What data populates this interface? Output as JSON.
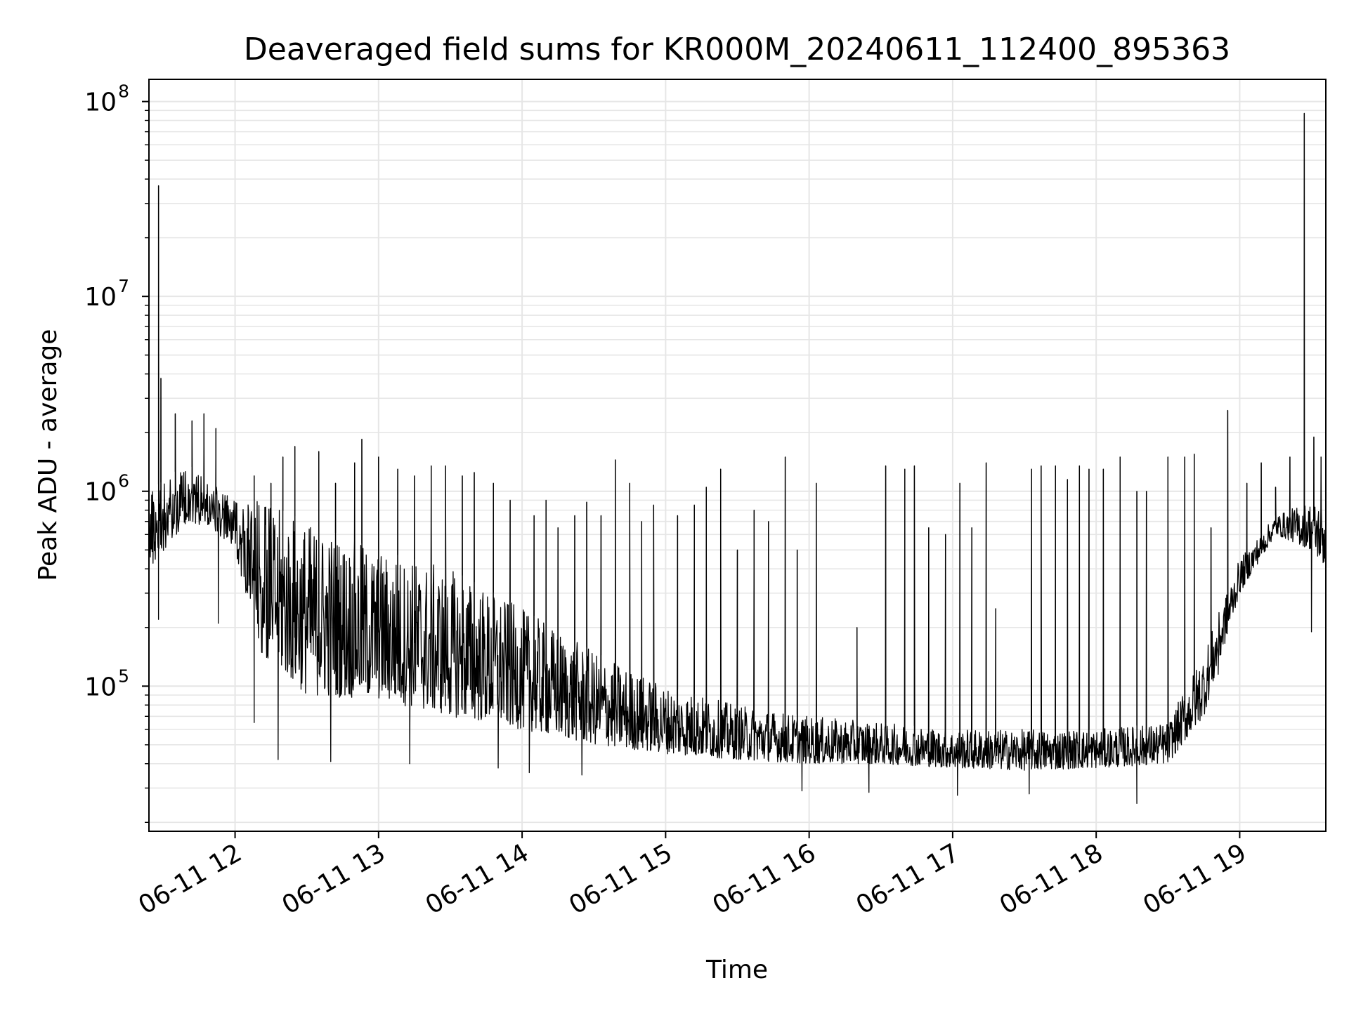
{
  "chart_data": {
    "type": "line",
    "title": "Deaveraged field sums for KR000M_20240611_112400_895363",
    "xlabel": "Time",
    "ylabel": "Peak ADU - average",
    "yscale": "log",
    "grid": true,
    "legend": "none",
    "colors": {
      "line": "#000000",
      "grid": "#e6e6e6",
      "background": "#ffffff"
    },
    "xlim": [
      "2024-06-11 11:24",
      "2024-06-11 19:36"
    ],
    "ylim": [
      18000,
      130000000
    ],
    "x_ticks": [
      {
        "value": "2024-06-11 12:00",
        "label": "06-11 12"
      },
      {
        "value": "2024-06-11 13:00",
        "label": "06-11 13"
      },
      {
        "value": "2024-06-11 14:00",
        "label": "06-11 14"
      },
      {
        "value": "2024-06-11 15:00",
        "label": "06-11 15"
      },
      {
        "value": "2024-06-11 16:00",
        "label": "06-11 16"
      },
      {
        "value": "2024-06-11 17:00",
        "label": "06-11 17"
      },
      {
        "value": "2024-06-11 18:00",
        "label": "06-11 18"
      },
      {
        "value": "2024-06-11 19:00",
        "label": "06-11 19"
      }
    ],
    "y_ticks": [
      {
        "value": 100000,
        "base": "10",
        "exp": "5"
      },
      {
        "value": 1000000,
        "base": "10",
        "exp": "6"
      },
      {
        "value": 10000000,
        "base": "10",
        "exp": "7"
      },
      {
        "value": 100000000,
        "base": "10",
        "exp": "8"
      }
    ],
    "series": [
      {
        "envelope": {
          "x": [
            "2024-06-11 11:24",
            "2024-06-11 11:40",
            "2024-06-11 11:50",
            "2024-06-11 12:00",
            "2024-06-11 12:10",
            "2024-06-11 12:30",
            "2024-06-11 13:00",
            "2024-06-11 13:30",
            "2024-06-11 14:00",
            "2024-06-11 14:30",
            "2024-06-11 15:00",
            "2024-06-11 15:30",
            "2024-06-11 16:00",
            "2024-06-11 16:30",
            "2024-06-11 17:00",
            "2024-06-11 17:30",
            "2024-06-11 18:00",
            "2024-06-11 18:30",
            "2024-06-11 18:45",
            "2024-06-11 19:00",
            "2024-06-11 19:15",
            "2024-06-11 19:30",
            "2024-06-11 19:36"
          ],
          "low": [
            400000,
            700000,
            650000,
            500000,
            150000,
            90000,
            85000,
            70000,
            60000,
            50000,
            45000,
            42000,
            40000,
            40000,
            38000,
            37000,
            38000,
            40000,
            70000,
            300000,
            600000,
            500000,
            400000
          ],
          "high": [
            1000000,
            1400000,
            1100000,
            900000,
            900000,
            700000,
            500000,
            400000,
            250000,
            150000,
            100000,
            80000,
            70000,
            65000,
            60000,
            60000,
            60000,
            65000,
            150000,
            450000,
            750000,
            900000,
            900000
          ]
        },
        "spikes": [
          [
            "2024-06-11 11:28",
            37000000
          ],
          [
            "2024-06-11 11:29",
            3800000
          ],
          [
            "2024-06-11 11:35",
            2500000
          ],
          [
            "2024-06-11 11:42",
            2300000
          ],
          [
            "2024-06-11 11:47",
            2500000
          ],
          [
            "2024-06-11 11:52",
            2100000
          ],
          [
            "2024-06-11 12:08",
            1200000
          ],
          [
            "2024-06-11 12:15",
            1100000
          ],
          [
            "2024-06-11 12:20",
            1500000
          ],
          [
            "2024-06-11 12:25",
            1700000
          ],
          [
            "2024-06-11 12:35",
            1600000
          ],
          [
            "2024-06-11 12:42",
            1100000
          ],
          [
            "2024-06-11 12:50",
            1400000
          ],
          [
            "2024-06-11 12:53",
            1850000
          ],
          [
            "2024-06-11 13:00",
            1500000
          ],
          [
            "2024-06-11 13:08",
            1300000
          ],
          [
            "2024-06-11 13:15",
            1200000
          ],
          [
            "2024-06-11 13:22",
            1350000
          ],
          [
            "2024-06-11 13:28",
            1350000
          ],
          [
            "2024-06-11 13:35",
            1200000
          ],
          [
            "2024-06-11 13:40",
            1250000
          ],
          [
            "2024-06-11 13:48",
            1100000
          ],
          [
            "2024-06-11 13:55",
            900000
          ],
          [
            "2024-06-11 14:05",
            750000
          ],
          [
            "2024-06-11 14:10",
            900000
          ],
          [
            "2024-06-11 14:15",
            650000
          ],
          [
            "2024-06-11 14:22",
            750000
          ],
          [
            "2024-06-11 14:27",
            880000
          ],
          [
            "2024-06-11 14:33",
            750000
          ],
          [
            "2024-06-11 14:39",
            1450000
          ],
          [
            "2024-06-11 14:45",
            1100000
          ],
          [
            "2024-06-11 14:50",
            700000
          ],
          [
            "2024-06-11 14:55",
            850000
          ],
          [
            "2024-06-11 15:05",
            750000
          ],
          [
            "2024-06-11 15:12",
            850000
          ],
          [
            "2024-06-11 15:17",
            1050000
          ],
          [
            "2024-06-11 15:23",
            1300000
          ],
          [
            "2024-06-11 15:30",
            500000
          ],
          [
            "2024-06-11 15:37",
            800000
          ],
          [
            "2024-06-11 15:43",
            700000
          ],
          [
            "2024-06-11 15:50",
            1500000
          ],
          [
            "2024-06-11 15:55",
            500000
          ],
          [
            "2024-06-11 16:03",
            1100000
          ],
          [
            "2024-06-11 16:20",
            200000
          ],
          [
            "2024-06-11 16:32",
            1350000
          ],
          [
            "2024-06-11 16:40",
            1300000
          ],
          [
            "2024-06-11 16:44",
            1350000
          ],
          [
            "2024-06-11 16:50",
            650000
          ],
          [
            "2024-06-11 16:57",
            600000
          ],
          [
            "2024-06-11 17:03",
            1100000
          ],
          [
            "2024-06-11 17:08",
            650000
          ],
          [
            "2024-06-11 17:14",
            1400000
          ],
          [
            "2024-06-11 17:18",
            250000
          ],
          [
            "2024-06-11 17:33",
            1300000
          ],
          [
            "2024-06-11 17:37",
            1350000
          ],
          [
            "2024-06-11 17:43",
            1350000
          ],
          [
            "2024-06-11 17:48",
            1150000
          ],
          [
            "2024-06-11 17:53",
            1350000
          ],
          [
            "2024-06-11 17:57",
            1300000
          ],
          [
            "2024-06-11 18:03",
            1300000
          ],
          [
            "2024-06-11 18:10",
            1500000
          ],
          [
            "2024-06-11 18:17",
            1000000
          ],
          [
            "2024-06-11 18:21",
            1000000
          ],
          [
            "2024-06-11 18:30",
            1500000
          ],
          [
            "2024-06-11 18:37",
            1500000
          ],
          [
            "2024-06-11 18:41",
            1550000
          ],
          [
            "2024-06-11 18:48",
            650000
          ],
          [
            "2024-06-11 18:55",
            2600000
          ],
          [
            "2024-06-11 19:03",
            1100000
          ],
          [
            "2024-06-11 19:09",
            1400000
          ],
          [
            "2024-06-11 19:15",
            1050000
          ],
          [
            "2024-06-11 19:21",
            1500000
          ],
          [
            "2024-06-11 19:27",
            87000000
          ],
          [
            "2024-06-11 19:31",
            1900000
          ],
          [
            "2024-06-11 19:34",
            1500000
          ]
        ],
        "dips": [
          [
            "2024-06-11 11:28",
            220000
          ],
          [
            "2024-06-11 11:53",
            210000
          ],
          [
            "2024-06-11 12:08",
            65000
          ],
          [
            "2024-06-11 12:18",
            42000
          ],
          [
            "2024-06-11 12:40",
            41000
          ],
          [
            "2024-06-11 13:13",
            40000
          ],
          [
            "2024-06-11 13:50",
            38000
          ],
          [
            "2024-06-11 14:03",
            36000
          ],
          [
            "2024-06-11 14:25",
            35000
          ],
          [
            "2024-06-11 15:57",
            29000
          ],
          [
            "2024-06-11 16:25",
            28500
          ],
          [
            "2024-06-11 17:02",
            27500
          ],
          [
            "2024-06-11 17:32",
            28000
          ],
          [
            "2024-06-11 18:17",
            25000
          ],
          [
            "2024-06-11 18:51",
            115000
          ],
          [
            "2024-06-11 19:30",
            190000
          ]
        ]
      }
    ]
  }
}
